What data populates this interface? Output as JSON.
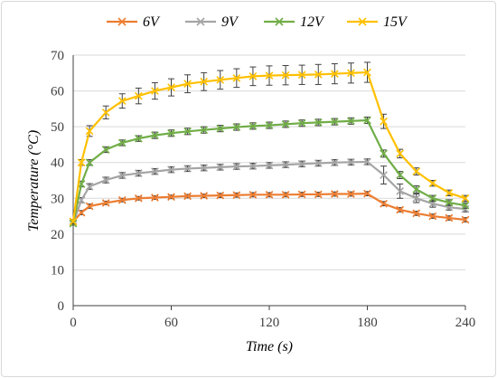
{
  "chart_data": {
    "type": "line",
    "xlabel": "Time (s)",
    "ylabel": "Temperature (°C)",
    "xlim": [
      0,
      240
    ],
    "ylim": [
      0,
      70
    ],
    "xticks": [
      0,
      60,
      120,
      180,
      240
    ],
    "yticks": [
      0,
      10,
      20,
      30,
      40,
      50,
      60,
      70
    ],
    "grid": "horizontal",
    "legend_position": "top",
    "x": [
      0,
      5,
      10,
      20,
      30,
      40,
      50,
      60,
      70,
      80,
      90,
      100,
      110,
      120,
      130,
      140,
      150,
      160,
      170,
      180,
      190,
      200,
      210,
      220,
      230,
      240
    ],
    "series": [
      {
        "name": "6V",
        "color": "#ED7D31",
        "values": [
          23.5,
          26.0,
          27.8,
          28.7,
          29.5,
          30.0,
          30.2,
          30.4,
          30.6,
          30.7,
          30.8,
          30.9,
          31.0,
          31.0,
          31.0,
          31.1,
          31.1,
          31.2,
          31.2,
          31.3,
          28.5,
          26.8,
          25.8,
          25.0,
          24.5,
          24.0
        ],
        "errors": [
          0.5,
          0.6,
          0.6,
          0.5,
          0.5,
          0.5,
          0.5,
          0.5,
          0.5,
          0.5,
          0.6,
          0.6,
          0.6,
          0.6,
          0.6,
          0.6,
          0.6,
          0.6,
          0.6,
          0.6,
          0.6,
          0.6,
          0.6,
          0.6,
          0.6,
          0.6
        ]
      },
      {
        "name": "9V",
        "color": "#A5A5A5",
        "values": [
          23.0,
          29.5,
          33.3,
          35.1,
          36.4,
          37.0,
          37.5,
          38.0,
          38.3,
          38.5,
          38.7,
          38.9,
          39.0,
          39.2,
          39.4,
          39.6,
          39.8,
          40.0,
          40.1,
          40.2,
          36.5,
          32.0,
          30.0,
          28.5,
          27.5,
          27.0
        ],
        "errors": [
          0.5,
          0.7,
          0.8,
          0.8,
          0.8,
          0.8,
          0.8,
          0.8,
          0.8,
          0.8,
          0.8,
          0.8,
          0.8,
          0.8,
          0.8,
          0.8,
          0.8,
          0.8,
          0.8,
          0.8,
          2.5,
          2.0,
          1.2,
          1.0,
          0.8,
          0.8
        ]
      },
      {
        "name": "12V",
        "color": "#70AD47",
        "values": [
          23.0,
          34.0,
          40.0,
          43.6,
          45.5,
          46.7,
          47.6,
          48.2,
          48.7,
          49.1,
          49.5,
          49.9,
          50.2,
          50.4,
          50.7,
          51.0,
          51.2,
          51.4,
          51.6,
          51.8,
          42.5,
          36.5,
          32.5,
          30.0,
          28.8,
          28.0
        ],
        "errors": [
          0.5,
          0.8,
          0.8,
          0.8,
          0.8,
          0.8,
          0.9,
          0.9,
          0.9,
          0.9,
          0.9,
          0.9,
          0.9,
          0.9,
          0.9,
          0.9,
          0.9,
          0.9,
          0.9,
          0.9,
          1.0,
          1.0,
          1.0,
          0.8,
          0.8,
          0.8
        ]
      },
      {
        "name": "15V",
        "color": "#FFC000",
        "values": [
          23.5,
          40.0,
          48.8,
          54.0,
          57.2,
          58.6,
          60.0,
          61.0,
          62.0,
          62.6,
          63.1,
          63.6,
          64.1,
          64.3,
          64.4,
          64.5,
          64.6,
          64.8,
          65.0,
          65.2,
          51.5,
          42.5,
          37.5,
          34.2,
          31.5,
          30.0
        ],
        "errors": [
          0.6,
          0.8,
          1.5,
          1.8,
          2.0,
          2.2,
          2.3,
          2.4,
          2.5,
          2.5,
          2.6,
          2.6,
          2.6,
          2.7,
          2.7,
          2.7,
          2.8,
          2.8,
          2.8,
          2.8,
          2.0,
          1.2,
          1.0,
          0.8,
          0.8,
          0.8
        ]
      }
    ]
  }
}
